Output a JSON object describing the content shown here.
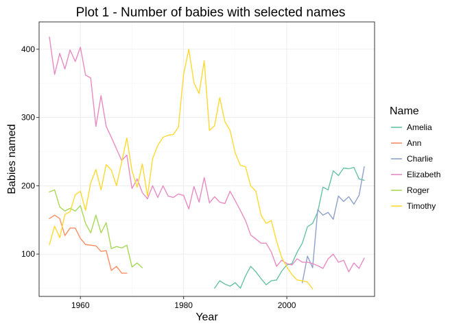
{
  "chart_data": {
    "type": "line",
    "title": "Plot 1 - Number of babies with selected names",
    "xlabel": "Year",
    "ylabel": "Babies named",
    "xlim": [
      1952,
      2017
    ],
    "ylim": [
      38,
      440
    ],
    "x_ticks": [
      1960,
      1980,
      2000
    ],
    "y_ticks": [
      100,
      200,
      300,
      400
    ],
    "x_minor": [
      1950,
      1970,
      1990,
      2010
    ],
    "y_minor": [
      50,
      150,
      250,
      350
    ],
    "grid": true,
    "legend": {
      "title": "Name",
      "position": "right"
    },
    "series": [
      {
        "name": "Amelia",
        "color": "#66c2a5",
        "x": [
          1986,
          1987,
          1988,
          1989,
          1990,
          1991,
          1992,
          1993,
          1994,
          1995,
          1996,
          1997,
          1998,
          1999,
          2000,
          2001,
          2002,
          2003,
          2004,
          2005,
          2006,
          2007,
          2008,
          2009,
          2010,
          2011,
          2012,
          2013,
          2014,
          2015
        ],
        "y": [
          50,
          61,
          56,
          53,
          58,
          50,
          68,
          82,
          74,
          64,
          55,
          61,
          62,
          75,
          84,
          86,
          103,
          116,
          140,
          145,
          162,
          198,
          194,
          222,
          215,
          226,
          225,
          227,
          210,
          208
        ]
      },
      {
        "name": "Ann",
        "color": "#fc8d62",
        "x": [
          1954,
          1955,
          1956,
          1957,
          1958,
          1959,
          1960,
          1961,
          1962,
          1963,
          1964,
          1965,
          1966,
          1967,
          1968,
          1969
        ],
        "y": [
          152,
          157,
          152,
          127,
          138,
          138,
          123,
          114,
          113,
          112,
          104,
          105,
          76,
          82,
          72,
          72
        ]
      },
      {
        "name": "Charlie",
        "color": "#8da0cb",
        "x": [
          2003,
          2004,
          2005,
          2006,
          2007,
          2008,
          2009,
          2010,
          2011,
          2012,
          2013,
          2014,
          2015
        ],
        "y": [
          58,
          97,
          80,
          165,
          157,
          161,
          151,
          185,
          177,
          184,
          173,
          186,
          228
        ]
      },
      {
        "name": "Elizabeth",
        "color": "#e78ac3",
        "x": [
          1954,
          1955,
          1956,
          1957,
          1958,
          1959,
          1960,
          1961,
          1962,
          1963,
          1964,
          1965,
          1966,
          1967,
          1968,
          1969,
          1970,
          1971,
          1972,
          1973,
          1974,
          1975,
          1976,
          1977,
          1978,
          1979,
          1980,
          1981,
          1982,
          1983,
          1984,
          1985,
          1986,
          1987,
          1988,
          1989,
          1990,
          1991,
          1992,
          1993,
          1994,
          1995,
          1996,
          1997,
          1998,
          1999,
          2000,
          2001,
          2002,
          2003,
          2004,
          2005,
          2006,
          2007,
          2008,
          2009,
          2010,
          2011,
          2012,
          2013,
          2014,
          2015
        ],
        "y": [
          418,
          363,
          394,
          371,
          399,
          382,
          403,
          362,
          358,
          287,
          332,
          287,
          271,
          254,
          237,
          245,
          196,
          210,
          190,
          181,
          200,
          183,
          200,
          185,
          183,
          188,
          186,
          166,
          199,
          176,
          212,
          175,
          184,
          176,
          174,
          192,
          178,
          164,
          149,
          128,
          122,
          116,
          116,
          103,
          82,
          91,
          86,
          84,
          93,
          88,
          88,
          86,
          83,
          79,
          93,
          100,
          88,
          91,
          74,
          87,
          79,
          94
        ]
      },
      {
        "name": "Roger",
        "color": "#a6d854",
        "x": [
          1954,
          1955,
          1956,
          1957,
          1958,
          1959,
          1960,
          1961,
          1962,
          1963,
          1964,
          1965,
          1966,
          1967,
          1968,
          1969,
          1970,
          1971,
          1972
        ],
        "y": [
          191,
          194,
          169,
          163,
          167,
          163,
          171,
          145,
          131,
          157,
          131,
          146,
          108,
          111,
          109,
          113,
          81,
          87,
          80
        ]
      },
      {
        "name": "Timothy",
        "color": "#ffd92f",
        "x": [
          1954,
          1955,
          1956,
          1957,
          1958,
          1959,
          1960,
          1961,
          1962,
          1963,
          1964,
          1965,
          1966,
          1967,
          1968,
          1969,
          1970,
          1971,
          1972,
          1973,
          1974,
          1975,
          1976,
          1977,
          1978,
          1979,
          1980,
          1981,
          1982,
          1983,
          1984,
          1985,
          1986,
          1987,
          1988,
          1989,
          1990,
          1991,
          1992,
          1993,
          1994,
          1995,
          1996,
          1997,
          1998,
          1999,
          2000,
          2001,
          2002,
          2003,
          2004,
          2005
        ],
        "y": [
          114,
          141,
          124,
          158,
          162,
          187,
          192,
          164,
          204,
          224,
          194,
          231,
          223,
          200,
          235,
          270,
          222,
          198,
          232,
          185,
          240,
          259,
          271,
          274,
          275,
          286,
          363,
          400,
          351,
          335,
          383,
          281,
          288,
          329,
          294,
          281,
          248,
          230,
          228,
          200,
          192,
          157,
          145,
          149,
          119,
          95,
          81,
          70,
          62,
          61,
          59,
          49
        ]
      }
    ]
  }
}
